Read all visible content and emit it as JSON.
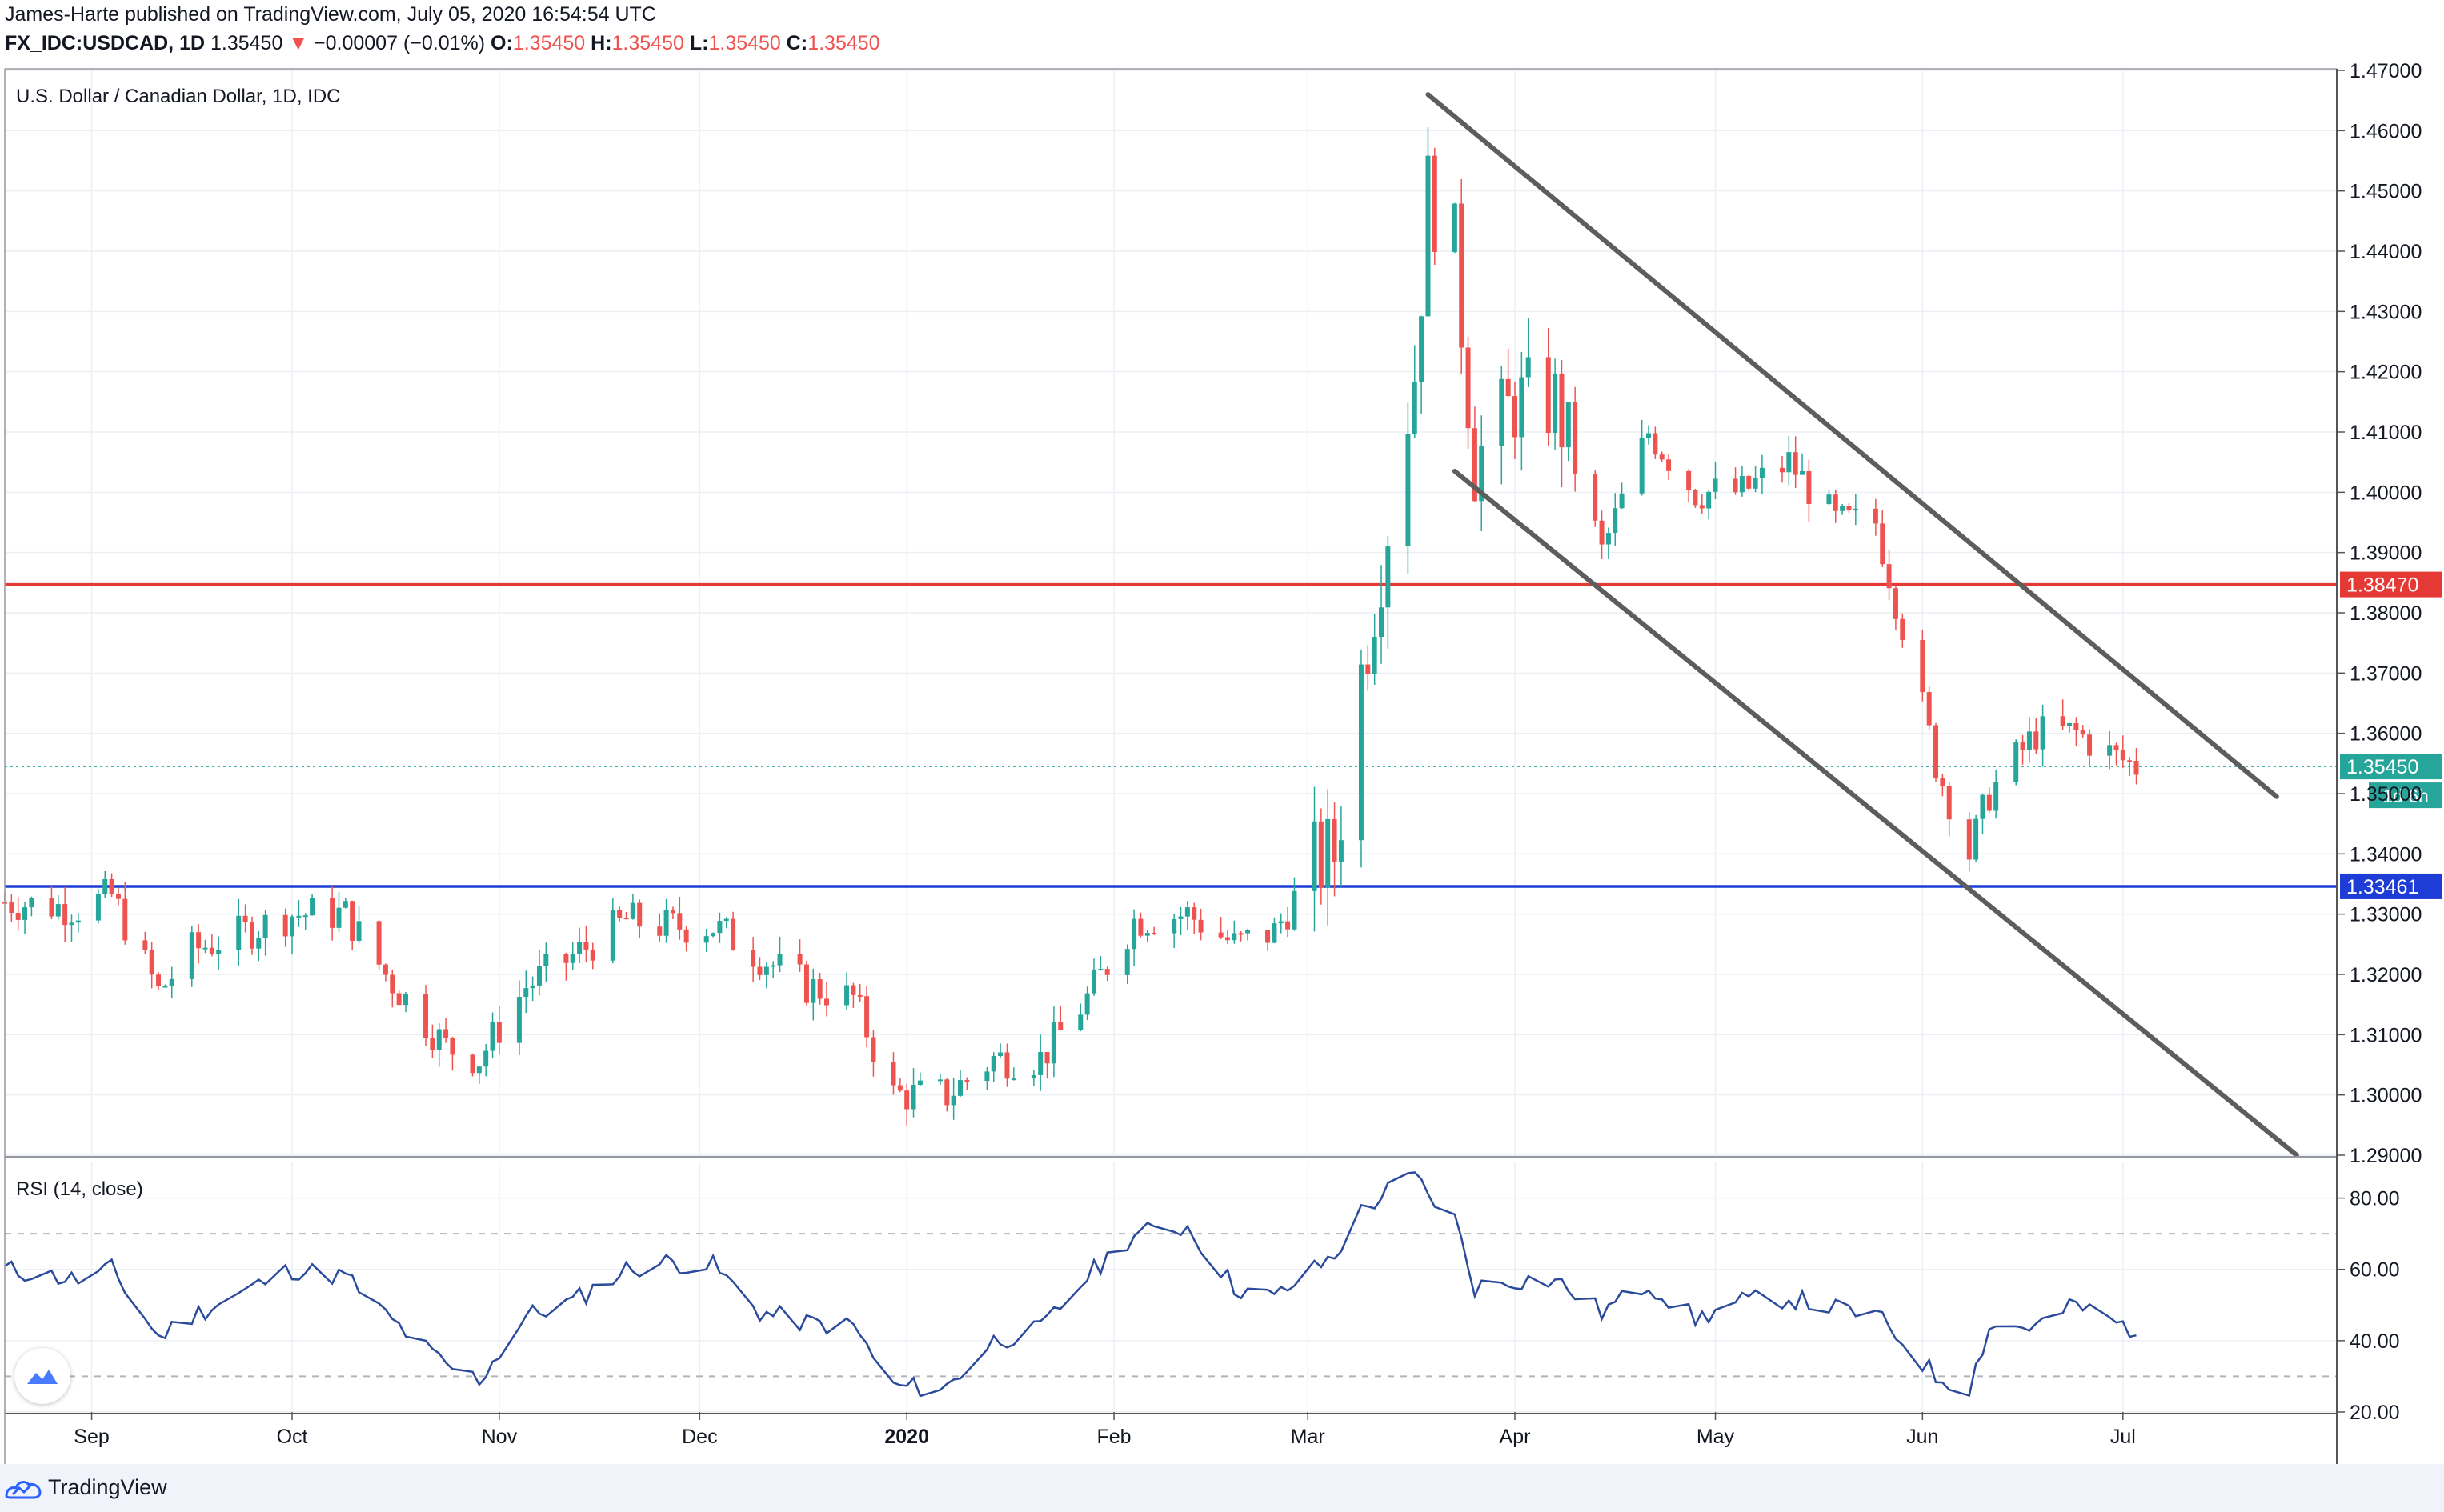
{
  "header": {
    "publisher_line": "James-Harte published on TradingView.com, July 05, 2020 16:54:54 UTC",
    "symbol": "FX_IDC:USDCAD, 1D",
    "last": "1.35450",
    "change_arrow": "▼",
    "change": "−0.00007 (−0.01%)",
    "o_label": "O:",
    "o_value": "1.35450",
    "h_label": "H:",
    "h_value": "1.35450",
    "l_label": "L:",
    "l_value": "1.35450",
    "c_label": "C:",
    "c_value": "1.35450"
  },
  "footer": {
    "brand": "TradingView"
  },
  "colors": {
    "up": "#26a69a",
    "down": "#ef5350",
    "resistance": "#e53935",
    "support": "#1e3dd6",
    "trendline": "#5d5d5d",
    "rsi": "#2a4a9b"
  },
  "chart_data": [
    {
      "type": "candlestick",
      "title": "U.S. Dollar / Canadian Dollar, 1D, IDC",
      "ylim": [
        1.29,
        1.47
      ],
      "y_ticks": [
        "1.47000",
        "1.46000",
        "1.45000",
        "1.44000",
        "1.43000",
        "1.42000",
        "1.41000",
        "1.40000",
        "1.39000",
        "1.38000",
        "1.37000",
        "1.36000",
        "1.35000",
        "1.34000",
        "1.33000",
        "1.32000",
        "1.31000",
        "1.30000",
        "1.29000"
      ],
      "x_ticks": [
        {
          "label": "Sep",
          "date": "2019-09-01"
        },
        {
          "label": "Oct",
          "date": "2019-10-01"
        },
        {
          "label": "Nov",
          "date": "2019-11-01"
        },
        {
          "label": "Dec",
          "date": "2019-12-01"
        },
        {
          "label": "2020",
          "date": "2020-01-01",
          "bold": true
        },
        {
          "label": "Feb",
          "date": "2020-02-01"
        },
        {
          "label": "Mar",
          "date": "2020-03-01"
        },
        {
          "label": "Apr",
          "date": "2020-04-01"
        },
        {
          "label": "May",
          "date": "2020-05-01"
        },
        {
          "label": "Jun",
          "date": "2020-06-01"
        },
        {
          "label": "Jul",
          "date": "2020-07-01"
        }
      ],
      "x_range": [
        "2019-08-19",
        "2020-08-02"
      ],
      "price_path": [
        [
          "2019-08-19",
          1.332
        ],
        [
          "2019-08-30",
          1.331
        ],
        [
          "2019-09-04",
          1.333
        ],
        [
          "2019-09-11",
          1.317
        ],
        [
          "2019-09-16",
          1.324
        ],
        [
          "2019-09-24",
          1.327
        ],
        [
          "2019-10-01",
          1.33
        ],
        [
          "2019-10-09",
          1.33
        ],
        [
          "2019-10-15",
          1.32
        ],
        [
          "2019-10-24",
          1.308
        ],
        [
          "2019-10-29",
          1.306
        ],
        [
          "2019-11-05",
          1.318
        ],
        [
          "2019-11-12",
          1.323
        ],
        [
          "2019-11-20",
          1.329
        ],
        [
          "2019-11-26",
          1.328
        ],
        [
          "2019-12-03",
          1.328
        ],
        [
          "2019-12-10",
          1.323
        ],
        [
          "2019-12-17",
          1.318
        ],
        [
          "2019-12-24",
          1.316
        ],
        [
          "2019-12-30",
          1.3
        ],
        [
          "2020-01-07",
          1.3
        ],
        [
          "2020-01-14",
          1.306
        ],
        [
          "2020-01-21",
          1.306
        ],
        [
          "2020-01-28",
          1.316
        ],
        [
          "2020-02-04",
          1.329
        ],
        [
          "2020-02-12",
          1.33
        ],
        [
          "2020-02-19",
          1.325
        ],
        [
          "2020-02-25",
          1.327
        ],
        [
          "2020-03-02",
          1.338
        ],
        [
          "2020-03-05",
          1.34
        ],
        [
          "2020-03-09",
          1.37
        ],
        [
          "2020-03-13",
          1.395
        ],
        [
          "2020-03-17",
          1.42
        ],
        [
          "2020-03-19",
          1.45
        ],
        [
          "2020-03-23",
          1.44
        ],
        [
          "2020-03-26",
          1.405
        ],
        [
          "2020-04-01",
          1.415
        ],
        [
          "2020-04-07",
          1.415
        ],
        [
          "2020-04-14",
          1.39
        ],
        [
          "2020-04-21",
          1.41
        ],
        [
          "2020-04-28",
          1.4
        ],
        [
          "2020-05-05",
          1.4
        ],
        [
          "2020-05-12",
          1.405
        ],
        [
          "2020-05-19",
          1.395
        ],
        [
          "2020-05-25",
          1.395
        ],
        [
          "2020-05-29",
          1.378
        ],
        [
          "2020-06-03",
          1.355
        ],
        [
          "2020-06-08",
          1.34
        ],
        [
          "2020-06-11",
          1.35
        ],
        [
          "2020-06-18",
          1.36
        ],
        [
          "2020-06-24",
          1.36
        ],
        [
          "2020-06-30",
          1.356
        ],
        [
          "2020-07-03",
          1.3545
        ]
      ],
      "candle_range": [
        0.003,
        0.011
      ],
      "horizontal_levels": [
        {
          "value": 1.3847,
          "label": "1.38470",
          "color": "#e53935"
        },
        {
          "value": 1.33461,
          "label": "1.33461",
          "color": "#1e3dd6"
        }
      ],
      "last_price": {
        "value": 1.3545,
        "label": "1.35450",
        "countdown": "1d 6h"
      },
      "trend_lines": [
        {
          "start": [
            "2020-03-19",
            1.466
          ],
          "end": [
            "2020-07-24",
            1.3495
          ]
        },
        {
          "start": [
            "2020-03-23",
            1.4035
          ],
          "end": [
            "2020-07-27",
            1.29
          ]
        }
      ]
    },
    {
      "type": "line",
      "title": "RSI (14, close)",
      "ylim": [
        20,
        90
      ],
      "y_ticks": [
        "80.00",
        "60.00",
        "40.00",
        "20.00"
      ],
      "bands": [
        70,
        30
      ],
      "series": [
        {
          "name": "RSI",
          "path": [
            [
              "2019-08-19",
              60
            ],
            [
              "2019-08-30",
              57
            ],
            [
              "2019-09-04",
              60
            ],
            [
              "2019-09-11",
              41
            ],
            [
              "2019-09-16",
              47
            ],
            [
              "2019-09-24",
              54
            ],
            [
              "2019-10-01",
              60
            ],
            [
              "2019-10-09",
              58
            ],
            [
              "2019-10-15",
              47
            ],
            [
              "2019-10-24",
              33
            ],
            [
              "2019-10-29",
              29
            ],
            [
              "2019-11-05",
              47
            ],
            [
              "2019-11-12",
              51
            ],
            [
              "2019-11-20",
              60
            ],
            [
              "2019-11-26",
              62
            ],
            [
              "2019-12-03",
              61
            ],
            [
              "2019-12-10",
              48
            ],
            [
              "2019-12-17",
              45
            ],
            [
              "2019-12-24",
              44
            ],
            [
              "2019-12-30",
              27
            ],
            [
              "2020-01-07",
              27
            ],
            [
              "2020-01-14",
              40
            ],
            [
              "2020-01-21",
              43
            ],
            [
              "2020-01-28",
              58
            ],
            [
              "2020-02-04",
              70
            ],
            [
              "2020-02-12",
              72
            ],
            [
              "2020-02-19",
              55
            ],
            [
              "2020-02-25",
              52
            ],
            [
              "2020-03-02",
              60
            ],
            [
              "2020-03-05",
              64
            ],
            [
              "2020-03-09",
              76
            ],
            [
              "2020-03-13",
              82
            ],
            [
              "2020-03-17",
              86
            ],
            [
              "2020-03-19",
              81
            ],
            [
              "2020-03-23",
              74
            ],
            [
              "2020-03-26",
              55
            ],
            [
              "2020-04-01",
              57
            ],
            [
              "2020-04-07",
              57
            ],
            [
              "2020-04-14",
              48
            ],
            [
              "2020-04-21",
              56
            ],
            [
              "2020-04-28",
              46
            ],
            [
              "2020-05-05",
              51
            ],
            [
              "2020-05-12",
              52
            ],
            [
              "2020-05-19",
              49
            ],
            [
              "2020-05-25",
              47
            ],
            [
              "2020-05-29",
              40
            ],
            [
              "2020-06-03",
              30
            ],
            [
              "2020-06-08",
              27
            ],
            [
              "2020-06-11",
              44
            ],
            [
              "2020-06-18",
              44
            ],
            [
              "2020-06-24",
              50
            ],
            [
              "2020-06-30",
              45
            ],
            [
              "2020-07-03",
              43
            ]
          ]
        }
      ]
    }
  ]
}
